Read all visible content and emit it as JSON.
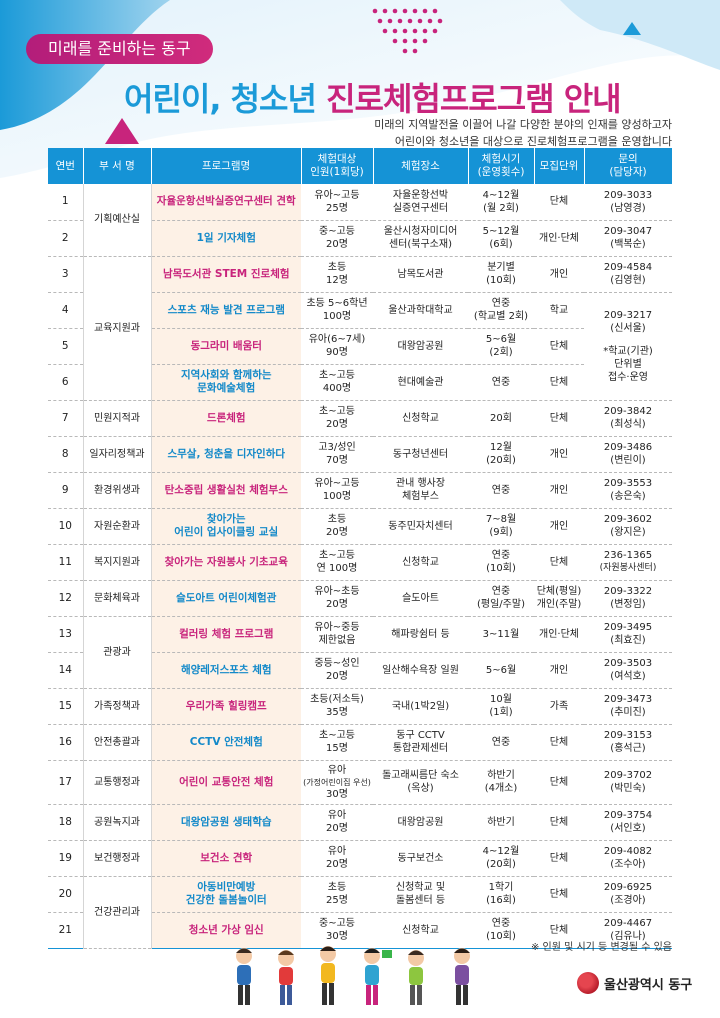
{
  "header": {
    "tagline": "미래를 준비하는 동구",
    "title_part1": "어린이, 청소년",
    "title_part2": "진로체험프로그램 안내",
    "subtitle_line1": "미래의 지역발전을 이끌어 나갈 다양한 분야의 인재를 양성하고자",
    "subtitle_line2": "어린이와 청소년을 대상으로 진로체험프로그램을 운영합니다"
  },
  "table": {
    "headers": {
      "no": "연번",
      "dept": "부 서 명",
      "program": "프로그램명",
      "target_l1": "체험대상",
      "target_l2": "인원(1회당)",
      "place": "체험장소",
      "period_l1": "체험시기",
      "period_l2": "(운영횟수)",
      "unit": "모집단위",
      "contact_l1": "문의",
      "contact_l2": "(담당자)"
    },
    "depts": {
      "d1": "기획예산실",
      "d2": "교육지원과",
      "d3": "민원지적과",
      "d4": "일자리정책과",
      "d5": "환경위생과",
      "d6": "자원순환과",
      "d7": "복지지원과",
      "d8": "문화체육과",
      "d9": "관광과",
      "d10": "가족정책과",
      "d11": "안전총괄과",
      "d12": "교통행정과",
      "d13": "공원녹지과",
      "d14": "보건행정과",
      "d15": "건강관리과"
    },
    "rows": [
      {
        "no": "1",
        "program": "자율운항선박실증연구센터 견학",
        "target_l1": "유아~고등",
        "target_l2": "25명",
        "place_l1": "자율운항선박",
        "place_l2": "실증연구센터",
        "period_l1": "4~12월",
        "period_l2": "(월 2회)",
        "unit": "단체",
        "contact_l1": "209-3033",
        "contact_l2": "(남영경)"
      },
      {
        "no": "2",
        "program": "1일 기자체험",
        "target_l1": "중~고등",
        "target_l2": "20명",
        "place_l1": "울산시청자미디어",
        "place_l2": "센터(북구소재)",
        "period_l1": "5~12월",
        "period_l2": "(6회)",
        "unit": "개인·단체",
        "contact_l1": "209-3047",
        "contact_l2": "(백복순)"
      },
      {
        "no": "3",
        "program": "남목도서관 STEM 진로체험",
        "target_l1": "초등",
        "target_l2": "12명",
        "place_l1": "남목도서관",
        "place_l2": "",
        "period_l1": "분기별",
        "period_l2": "(10회)",
        "unit": "개인",
        "contact_l1": "209-4584",
        "contact_l2": "(김영현)"
      },
      {
        "no": "4",
        "program": "스포츠 재능 발견 프로그램",
        "target_l1": "초등 5~6학년",
        "target_l2": "100명",
        "place_l1": "울산과학대학교",
        "place_l2": "",
        "period_l1": "연중",
        "period_l2": "(학교별 2회)",
        "unit": "학교"
      },
      {
        "no": "5",
        "program": "동그라미 배움터",
        "target_l1": "유아(6~7세)",
        "target_l2": "90명",
        "place_l1": "대왕암공원",
        "place_l2": "",
        "period_l1": "5~6월",
        "period_l2": "(2회)",
        "unit": "단체"
      },
      {
        "no": "6",
        "program_l1": "지역사회와 함께하는",
        "program_l2": "문화예술체험",
        "target_l1": "초~고등",
        "target_l2": "400명",
        "place_l1": "현대예술관",
        "place_l2": "",
        "period_l1": "연중",
        "period_l2": "",
        "unit": "단체"
      },
      {
        "no": "7",
        "program": "드론체험",
        "target_l1": "초~고등",
        "target_l2": "20명",
        "place_l1": "신청학교",
        "place_l2": "",
        "period_l1": "20회",
        "period_l2": "",
        "unit": "단체",
        "contact_l1": "209-3842",
        "contact_l2": "(최성식)"
      },
      {
        "no": "8",
        "program": "스무살, 청춘을 디자인하다",
        "target_l1": "고3/성인",
        "target_l2": "70명",
        "place_l1": "동구청년센터",
        "place_l2": "",
        "period_l1": "12월",
        "period_l2": "(20회)",
        "unit": "개인",
        "contact_l1": "209-3486",
        "contact_l2": "(변린이)"
      },
      {
        "no": "9",
        "program": "탄소중립 생활실천 체험부스",
        "target_l1": "유아~고등",
        "target_l2": "100명",
        "place_l1": "관내 행사장",
        "place_l2": "체험부스",
        "period_l1": "연중",
        "period_l2": "",
        "unit": "개인",
        "contact_l1": "209-3553",
        "contact_l2": "(송은숙)"
      },
      {
        "no": "10",
        "program_l1": "찾아가는",
        "program_l2": "어린이 업사이클링 교실",
        "target_l1": "초등",
        "target_l2": "20명",
        "place_l1": "동주민자치센터",
        "place_l2": "",
        "period_l1": "7~8월",
        "period_l2": "(9회)",
        "unit": "개인",
        "contact_l1": "209-3602",
        "contact_l2": "(왕지은)"
      },
      {
        "no": "11",
        "program": "찾아가는 자원봉사 기초교육",
        "target_l1": "초~고등",
        "target_l2": "연 100명",
        "place_l1": "신청학교",
        "place_l2": "",
        "period_l1": "연중",
        "period_l2": "(10회)",
        "unit": "단체",
        "contact_l1": "236-1365",
        "contact_l2": "(자원봉사센터)"
      },
      {
        "no": "12",
        "program": "슬도아트 어린이체험관",
        "target_l1": "유아~초등",
        "target_l2": "20명",
        "place_l1": "슬도아트",
        "place_l2": "",
        "period_l1": "연중",
        "period_l2": "(평일/주말)",
        "unit_l1": "단체(평일)",
        "unit_l2": "개인(주말)",
        "contact_l1": "209-3322",
        "contact_l2": "(변정임)"
      },
      {
        "no": "13",
        "program": "컬러링 체험 프로그램",
        "target_l1": "유아~중등",
        "target_l2": "제한없음",
        "place_l1": "해파랑쉼터 등",
        "place_l2": "",
        "period_l1": "3~11월",
        "period_l2": "",
        "unit": "개인·단체",
        "contact_l1": "209-3495",
        "contact_l2": "(최효진)"
      },
      {
        "no": "14",
        "program": "해양레저스포츠 체험",
        "target_l1": "중등~성인",
        "target_l2": "20명",
        "place_l1": "일산해수욕장 일원",
        "place_l2": "",
        "period_l1": "5~6월",
        "period_l2": "",
        "unit": "개인",
        "contact_l1": "209-3503",
        "contact_l2": "(여석호)"
      },
      {
        "no": "15",
        "program": "우리가족 힐링캠프",
        "target_l1": "초등(저소득)",
        "target_l2": "35명",
        "place_l1": "국내(1박2일)",
        "place_l2": "",
        "period_l1": "10월",
        "period_l2": "(1회)",
        "unit": "가족",
        "contact_l1": "209-3473",
        "contact_l2": "(추미진)"
      },
      {
        "no": "16",
        "program": "CCTV 안전체험",
        "target_l1": "초~고등",
        "target_l2": "15명",
        "place_l1": "동구 CCTV",
        "place_l2": "통합관제센터",
        "period_l1": "연중",
        "period_l2": "",
        "unit": "단체",
        "contact_l1": "209-3153",
        "contact_l2": "(홍석근)"
      },
      {
        "no": "17",
        "program": "어린이 교통안전 체험",
        "target_l1": "유아",
        "target_l2": "(가정어린이집 우선)",
        "target_l3": "30명",
        "place_l1": "돌고래씨름단 숙소",
        "place_l2": "(옥상)",
        "period_l1": "하반기",
        "period_l2": "(4개소)",
        "unit": "단체",
        "contact_l1": "209-3702",
        "contact_l2": "(박민숙)"
      },
      {
        "no": "18",
        "program": "대왕암공원 생태학습",
        "target_l1": "유아",
        "target_l2": "20명",
        "place_l1": "대왕암공원",
        "place_l2": "",
        "period_l1": "하반기",
        "period_l2": "",
        "unit": "단체",
        "contact_l1": "209-3754",
        "contact_l2": "(서인호)"
      },
      {
        "no": "19",
        "program": "보건소 견학",
        "target_l1": "유아",
        "target_l2": "20명",
        "place_l1": "동구보건소",
        "place_l2": "",
        "period_l1": "4~12월",
        "period_l2": "(20회)",
        "unit": "단체",
        "contact_l1": "209-4082",
        "contact_l2": "(조수아)"
      },
      {
        "no": "20",
        "program_l1": "아동비만예방",
        "program_l2": "건강한 돌봄놀이터",
        "target_l1": "초등",
        "target_l2": "25명",
        "place_l1": "신청학교 및",
        "place_l2": "돌봄센터 등",
        "period_l1": "1학기",
        "period_l2": "(16회)",
        "unit": "단체",
        "contact_l1": "209-6925",
        "contact_l2": "(조경아)"
      },
      {
        "no": "21",
        "program": "청소년 가상 임신",
        "target_l1": "중~고등",
        "target_l2": "30명",
        "place_l1": "신청학교",
        "place_l2": "",
        "period_l1": "연중",
        "period_l2": "(10회)",
        "unit": "단체",
        "contact_l1": "209-4467",
        "contact_l2": "(김유나)"
      }
    ],
    "merged_contact": {
      "l1": "209-3217",
      "l2": "(신서울)",
      "l3": "*학교(기관)",
      "l4": "단위별",
      "l5": "접수·운영"
    }
  },
  "footer": {
    "note": "※ 인원 및 시기 등 변경될 수 있음",
    "logo_text": "울산광역시 동구"
  },
  "colors": {
    "header_blue": "#1593d6",
    "accent_pink": "#c8247c",
    "accent_blue": "#1b9ad8",
    "program_bg": "#fdf1e6"
  }
}
